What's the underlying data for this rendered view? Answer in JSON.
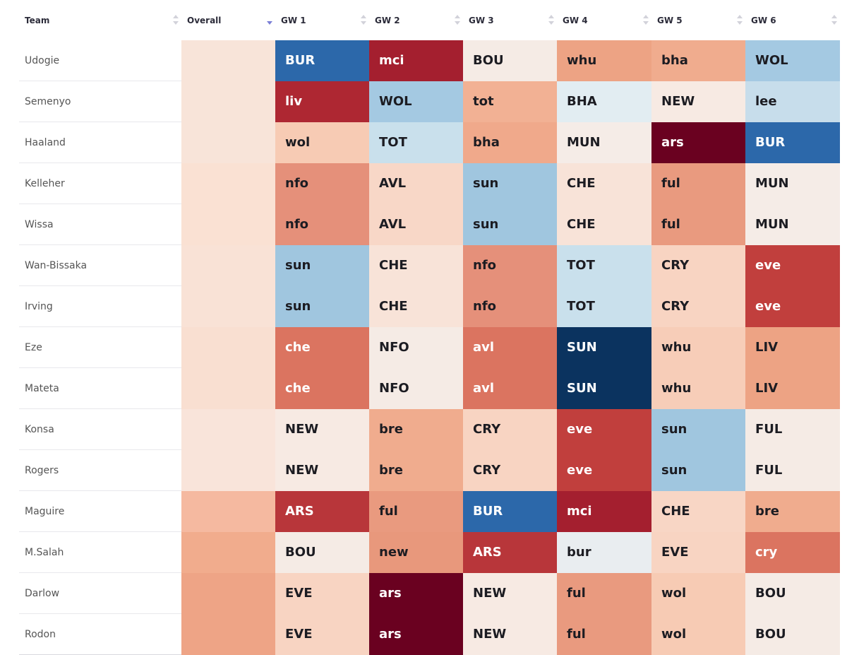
{
  "headers": {
    "team": "Team",
    "overall": "Overall",
    "gws": [
      "GW 1",
      "GW 2",
      "GW 3",
      "GW 4",
      "GW 5",
      "GW 6"
    ]
  },
  "sort": {
    "column": "overall",
    "direction": "descending"
  },
  "rows": [
    {
      "team": "Udogie",
      "overall_color": "#f8e4d9",
      "fixtures": [
        {
          "label": "BUR",
          "color": "#2c68aa"
        },
        {
          "label": "mci",
          "color": "#a41f2f"
        },
        {
          "label": "BOU",
          "color": "#f5ebe5"
        },
        {
          "label": "whu",
          "color": "#eda384"
        },
        {
          "label": "bha",
          "color": "#f0ac8e"
        },
        {
          "label": "WOL",
          "color": "#a4c9e2"
        }
      ]
    },
    {
      "team": "Semenyo",
      "overall_color": "#f8e4d9",
      "fixtures": [
        {
          "label": "liv",
          "color": "#ae2732"
        },
        {
          "label": "WOL",
          "color": "#a4c9e2"
        },
        {
          "label": "tot",
          "color": "#f2b194"
        },
        {
          "label": "BHA",
          "color": "#e2edf2"
        },
        {
          "label": "NEW",
          "color": "#f7eae3"
        },
        {
          "label": "lee",
          "color": "#c7ddeb"
        }
      ]
    },
    {
      "team": "Haaland",
      "overall_color": "#f8e4d9",
      "fixtures": [
        {
          "label": "wol",
          "color": "#f7cbb4"
        },
        {
          "label": "TOT",
          "color": "#c9e0ec"
        },
        {
          "label": "bha",
          "color": "#f0a98b"
        },
        {
          "label": "MUN",
          "color": "#f5ece7"
        },
        {
          "label": "ars",
          "color": "#6a0120"
        },
        {
          "label": "BUR",
          "color": "#2c68aa"
        }
      ]
    },
    {
      "team": "Kelleher",
      "overall_color": "#fae1d3",
      "fixtures": [
        {
          "label": "nfo",
          "color": "#e5907a"
        },
        {
          "label": "AVL",
          "color": "#f8d7c7"
        },
        {
          "label": "sun",
          "color": "#a0c6df"
        },
        {
          "label": "CHE",
          "color": "#f8e3d8"
        },
        {
          "label": "ful",
          "color": "#e99a7f"
        },
        {
          "label": "MUN",
          "color": "#f5ece7"
        }
      ]
    },
    {
      "team": "Wissa",
      "overall_color": "#fae1d3",
      "fixtures": [
        {
          "label": "nfo",
          "color": "#e5907a"
        },
        {
          "label": "AVL",
          "color": "#f8d7c7"
        },
        {
          "label": "sun",
          "color": "#a0c6df"
        },
        {
          "label": "CHE",
          "color": "#f8e3d8"
        },
        {
          "label": "ful",
          "color": "#e99a7f"
        },
        {
          "label": "MUN",
          "color": "#f5ece7"
        }
      ]
    },
    {
      "team": "Wan-Bissaka",
      "overall_color": "#f9e2d6",
      "fixtures": [
        {
          "label": "sun",
          "color": "#a0c6df"
        },
        {
          "label": "CHE",
          "color": "#f8e3d8"
        },
        {
          "label": "nfo",
          "color": "#e5907a"
        },
        {
          "label": "TOT",
          "color": "#c9e0ec"
        },
        {
          "label": "CRY",
          "color": "#f8d4c2"
        },
        {
          "label": "eve",
          "color": "#c13f3d"
        }
      ]
    },
    {
      "team": "Irving",
      "overall_color": "#f9e2d6",
      "fixtures": [
        {
          "label": "sun",
          "color": "#a0c6df"
        },
        {
          "label": "CHE",
          "color": "#f8e3d8"
        },
        {
          "label": "nfo",
          "color": "#e5907a"
        },
        {
          "label": "TOT",
          "color": "#c9e0ec"
        },
        {
          "label": "CRY",
          "color": "#f8d4c2"
        },
        {
          "label": "eve",
          "color": "#c13f3d"
        }
      ]
    },
    {
      "team": "Eze",
      "overall_color": "#f9dfd1",
      "fixtures": [
        {
          "label": "che",
          "color": "#db7460"
        },
        {
          "label": "NFO",
          "color": "#f5ebe5"
        },
        {
          "label": "avl",
          "color": "#db7460"
        },
        {
          "label": "SUN",
          "color": "#0b335f"
        },
        {
          "label": "whu",
          "color": "#f7cdb8"
        },
        {
          "label": "LIV",
          "color": "#eda384"
        }
      ]
    },
    {
      "team": "Mateta",
      "overall_color": "#f9dfd1",
      "fixtures": [
        {
          "label": "che",
          "color": "#db7460"
        },
        {
          "label": "NFO",
          "color": "#f5ebe5"
        },
        {
          "label": "avl",
          "color": "#db7460"
        },
        {
          "label": "SUN",
          "color": "#0b335f"
        },
        {
          "label": "whu",
          "color": "#f7cdb8"
        },
        {
          "label": "LIV",
          "color": "#eda384"
        }
      ]
    },
    {
      "team": "Konsa",
      "overall_color": "#f9e4da",
      "fixtures": [
        {
          "label": "NEW",
          "color": "#f7eae3"
        },
        {
          "label": "bre",
          "color": "#f0ac8e"
        },
        {
          "label": "CRY",
          "color": "#f8d4c2"
        },
        {
          "label": "eve",
          "color": "#c13f3d"
        },
        {
          "label": "sun",
          "color": "#a0c6df"
        },
        {
          "label": "FUL",
          "color": "#f5ebe5"
        }
      ]
    },
    {
      "team": "Rogers",
      "overall_color": "#f9e4da",
      "fixtures": [
        {
          "label": "NEW",
          "color": "#f7eae3"
        },
        {
          "label": "bre",
          "color": "#f0ac8e"
        },
        {
          "label": "CRY",
          "color": "#f8d4c2"
        },
        {
          "label": "eve",
          "color": "#c13f3d"
        },
        {
          "label": "sun",
          "color": "#a0c6df"
        },
        {
          "label": "FUL",
          "color": "#f5ebe5"
        }
      ]
    },
    {
      "team": "Maguire",
      "overall_color": "#f5b9a0",
      "fixtures": [
        {
          "label": "ARS",
          "color": "#b8363a"
        },
        {
          "label": "ful",
          "color": "#e99a7f"
        },
        {
          "label": "BUR",
          "color": "#2c68aa"
        },
        {
          "label": "mci",
          "color": "#a41f2f"
        },
        {
          "label": "CHE",
          "color": "#f8d6c5"
        },
        {
          "label": "bre",
          "color": "#f0ac8e"
        }
      ]
    },
    {
      "team": "M.Salah",
      "overall_color": "#f1ac8d",
      "fixtures": [
        {
          "label": "BOU",
          "color": "#f5ebe5"
        },
        {
          "label": "new",
          "color": "#e8987c"
        },
        {
          "label": "ARS",
          "color": "#b8363a"
        },
        {
          "label": "bur",
          "color": "#e9edf0"
        },
        {
          "label": "EVE",
          "color": "#f8d4c2"
        },
        {
          "label": "cry",
          "color": "#db7460"
        }
      ]
    },
    {
      "team": "Darlow",
      "overall_color": "#eea486",
      "fixtures": [
        {
          "label": "EVE",
          "color": "#f8d4c2"
        },
        {
          "label": "ars",
          "color": "#6a0120"
        },
        {
          "label": "NEW",
          "color": "#f7eae3"
        },
        {
          "label": "ful",
          "color": "#e99a7f"
        },
        {
          "label": "wol",
          "color": "#f7cbb4"
        },
        {
          "label": "BOU",
          "color": "#f5ebe5"
        }
      ]
    },
    {
      "team": "Rodon",
      "overall_color": "#eea486",
      "fixtures": [
        {
          "label": "EVE",
          "color": "#f8d4c2"
        },
        {
          "label": "ars",
          "color": "#6a0120"
        },
        {
          "label": "NEW",
          "color": "#f7eae3"
        },
        {
          "label": "ful",
          "color": "#e99a7f"
        },
        {
          "label": "wol",
          "color": "#f7cbb4"
        },
        {
          "label": "BOU",
          "color": "#f5ebe5"
        }
      ]
    }
  ]
}
